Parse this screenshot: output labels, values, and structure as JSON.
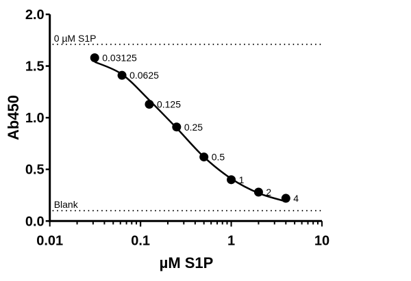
{
  "chart_data": {
    "type": "scatter",
    "xlabel": "µM S1P",
    "ylabel": "Ab450",
    "xscale": "log",
    "xlim": [
      0.01,
      10
    ],
    "ylim": [
      0,
      2.0
    ],
    "x_ticks": [
      "0.01",
      "0.1",
      "1",
      "10"
    ],
    "y_ticks": [
      "0.0",
      "0.5",
      "1.0",
      "1.5",
      "2.0"
    ],
    "grid": false,
    "points": [
      {
        "x": 0.03125,
        "y": 1.58,
        "label": "0.03125"
      },
      {
        "x": 0.0625,
        "y": 1.41,
        "label": "0.0625"
      },
      {
        "x": 0.125,
        "y": 1.13,
        "label": "0.125"
      },
      {
        "x": 0.25,
        "y": 0.91,
        "label": "0.25"
      },
      {
        "x": 0.5,
        "y": 0.62,
        "label": "0.5"
      },
      {
        "x": 1,
        "y": 0.4,
        "label": "1"
      },
      {
        "x": 2,
        "y": 0.28,
        "label": "2"
      },
      {
        "x": 4,
        "y": 0.22,
        "label": "4"
      }
    ],
    "fit_curve": {
      "x": [
        0.03125,
        0.0625,
        0.125,
        0.25,
        0.5,
        1,
        2,
        4
      ],
      "y": [
        1.54,
        1.42,
        1.17,
        0.9,
        0.62,
        0.41,
        0.27,
        0.19
      ]
    },
    "reference_lines": [
      {
        "y": 1.71,
        "label": "0 µM S1P",
        "style": "dotted"
      },
      {
        "y": 0.1,
        "label": "Blank",
        "style": "dotted"
      }
    ],
    "colors": {
      "points": "#000000",
      "line": "#000000"
    }
  }
}
